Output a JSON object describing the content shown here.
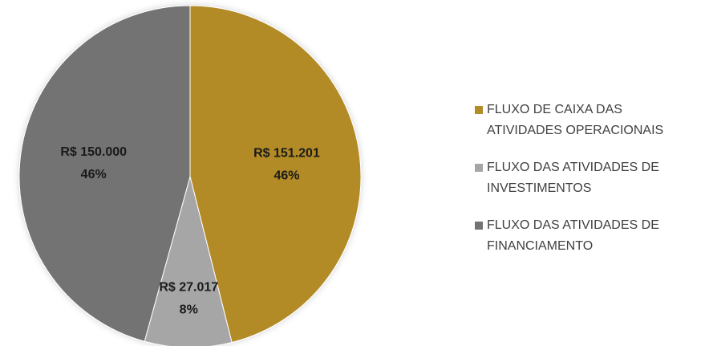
{
  "chart_data": {
    "type": "pie",
    "categories": [
      "FLUXO DE CAIXA DAS ATIVIDADES OPERACIONAIS",
      "FLUXO DAS ATIVIDADES DE INVESTIMENTOS",
      "FLUXO DAS ATIVIDADES DE FINANCIAMENTO"
    ],
    "values": [
      151201,
      27017,
      150000
    ],
    "value_labels": [
      "R$ 151.201",
      "R$ 27.017",
      "R$ 150.000"
    ],
    "percent_labels": [
      "46%",
      "8%",
      "46%"
    ],
    "colors": [
      "#b38b27",
      "#a6a6a6",
      "#737373"
    ],
    "legend": "right"
  }
}
